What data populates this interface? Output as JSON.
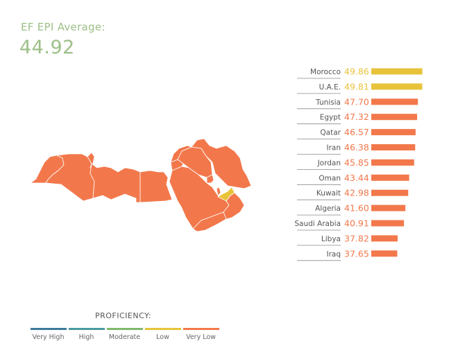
{
  "header": {
    "avg_label": "EF EPI Average:",
    "avg_value": "44.92"
  },
  "colors": {
    "very_high": "#3d7a99",
    "high": "#4a9aa0",
    "moderate": "#7fb86a",
    "low": "#e8c33a",
    "very_low": "#f2784b",
    "header_green": "#9dbf88"
  },
  "chart_data": {
    "type": "bar",
    "orientation": "horizontal",
    "categories": [
      "Morocco",
      "U.A.E.",
      "Tunisia",
      "Egypt",
      "Qatar",
      "Iran",
      "Jordan",
      "Oman",
      "Kuwait",
      "Algeria",
      "Saudi Arabia",
      "Libya",
      "Iraq"
    ],
    "values": [
      49.86,
      49.81,
      47.7,
      47.32,
      46.57,
      46.38,
      45.85,
      43.44,
      42.98,
      41.6,
      40.91,
      37.82,
      37.65
    ],
    "labels": [
      "49.86",
      "49.81",
      "47.70",
      "47.32",
      "46.57",
      "46.38",
      "45.85",
      "43.44",
      "42.98",
      "41.60",
      "40.91",
      "37.82",
      "37.65"
    ],
    "proficiency": [
      "Low",
      "Low",
      "Very Low",
      "Very Low",
      "Very Low",
      "Very Low",
      "Very Low",
      "Very Low",
      "Very Low",
      "Very Low",
      "Very Low",
      "Very Low",
      "Very Low"
    ],
    "xlim": [
      0,
      50
    ]
  },
  "legend": {
    "title": "PROFICIENCY:",
    "items": [
      {
        "label": "Very High",
        "color": "#3d7a99"
      },
      {
        "label": "High",
        "color": "#4a9aa0"
      },
      {
        "label": "Moderate",
        "color": "#7fb86a"
      },
      {
        "label": "Low",
        "color": "#e8c33a"
      },
      {
        "label": "Very Low",
        "color": "#f2784b"
      }
    ]
  }
}
